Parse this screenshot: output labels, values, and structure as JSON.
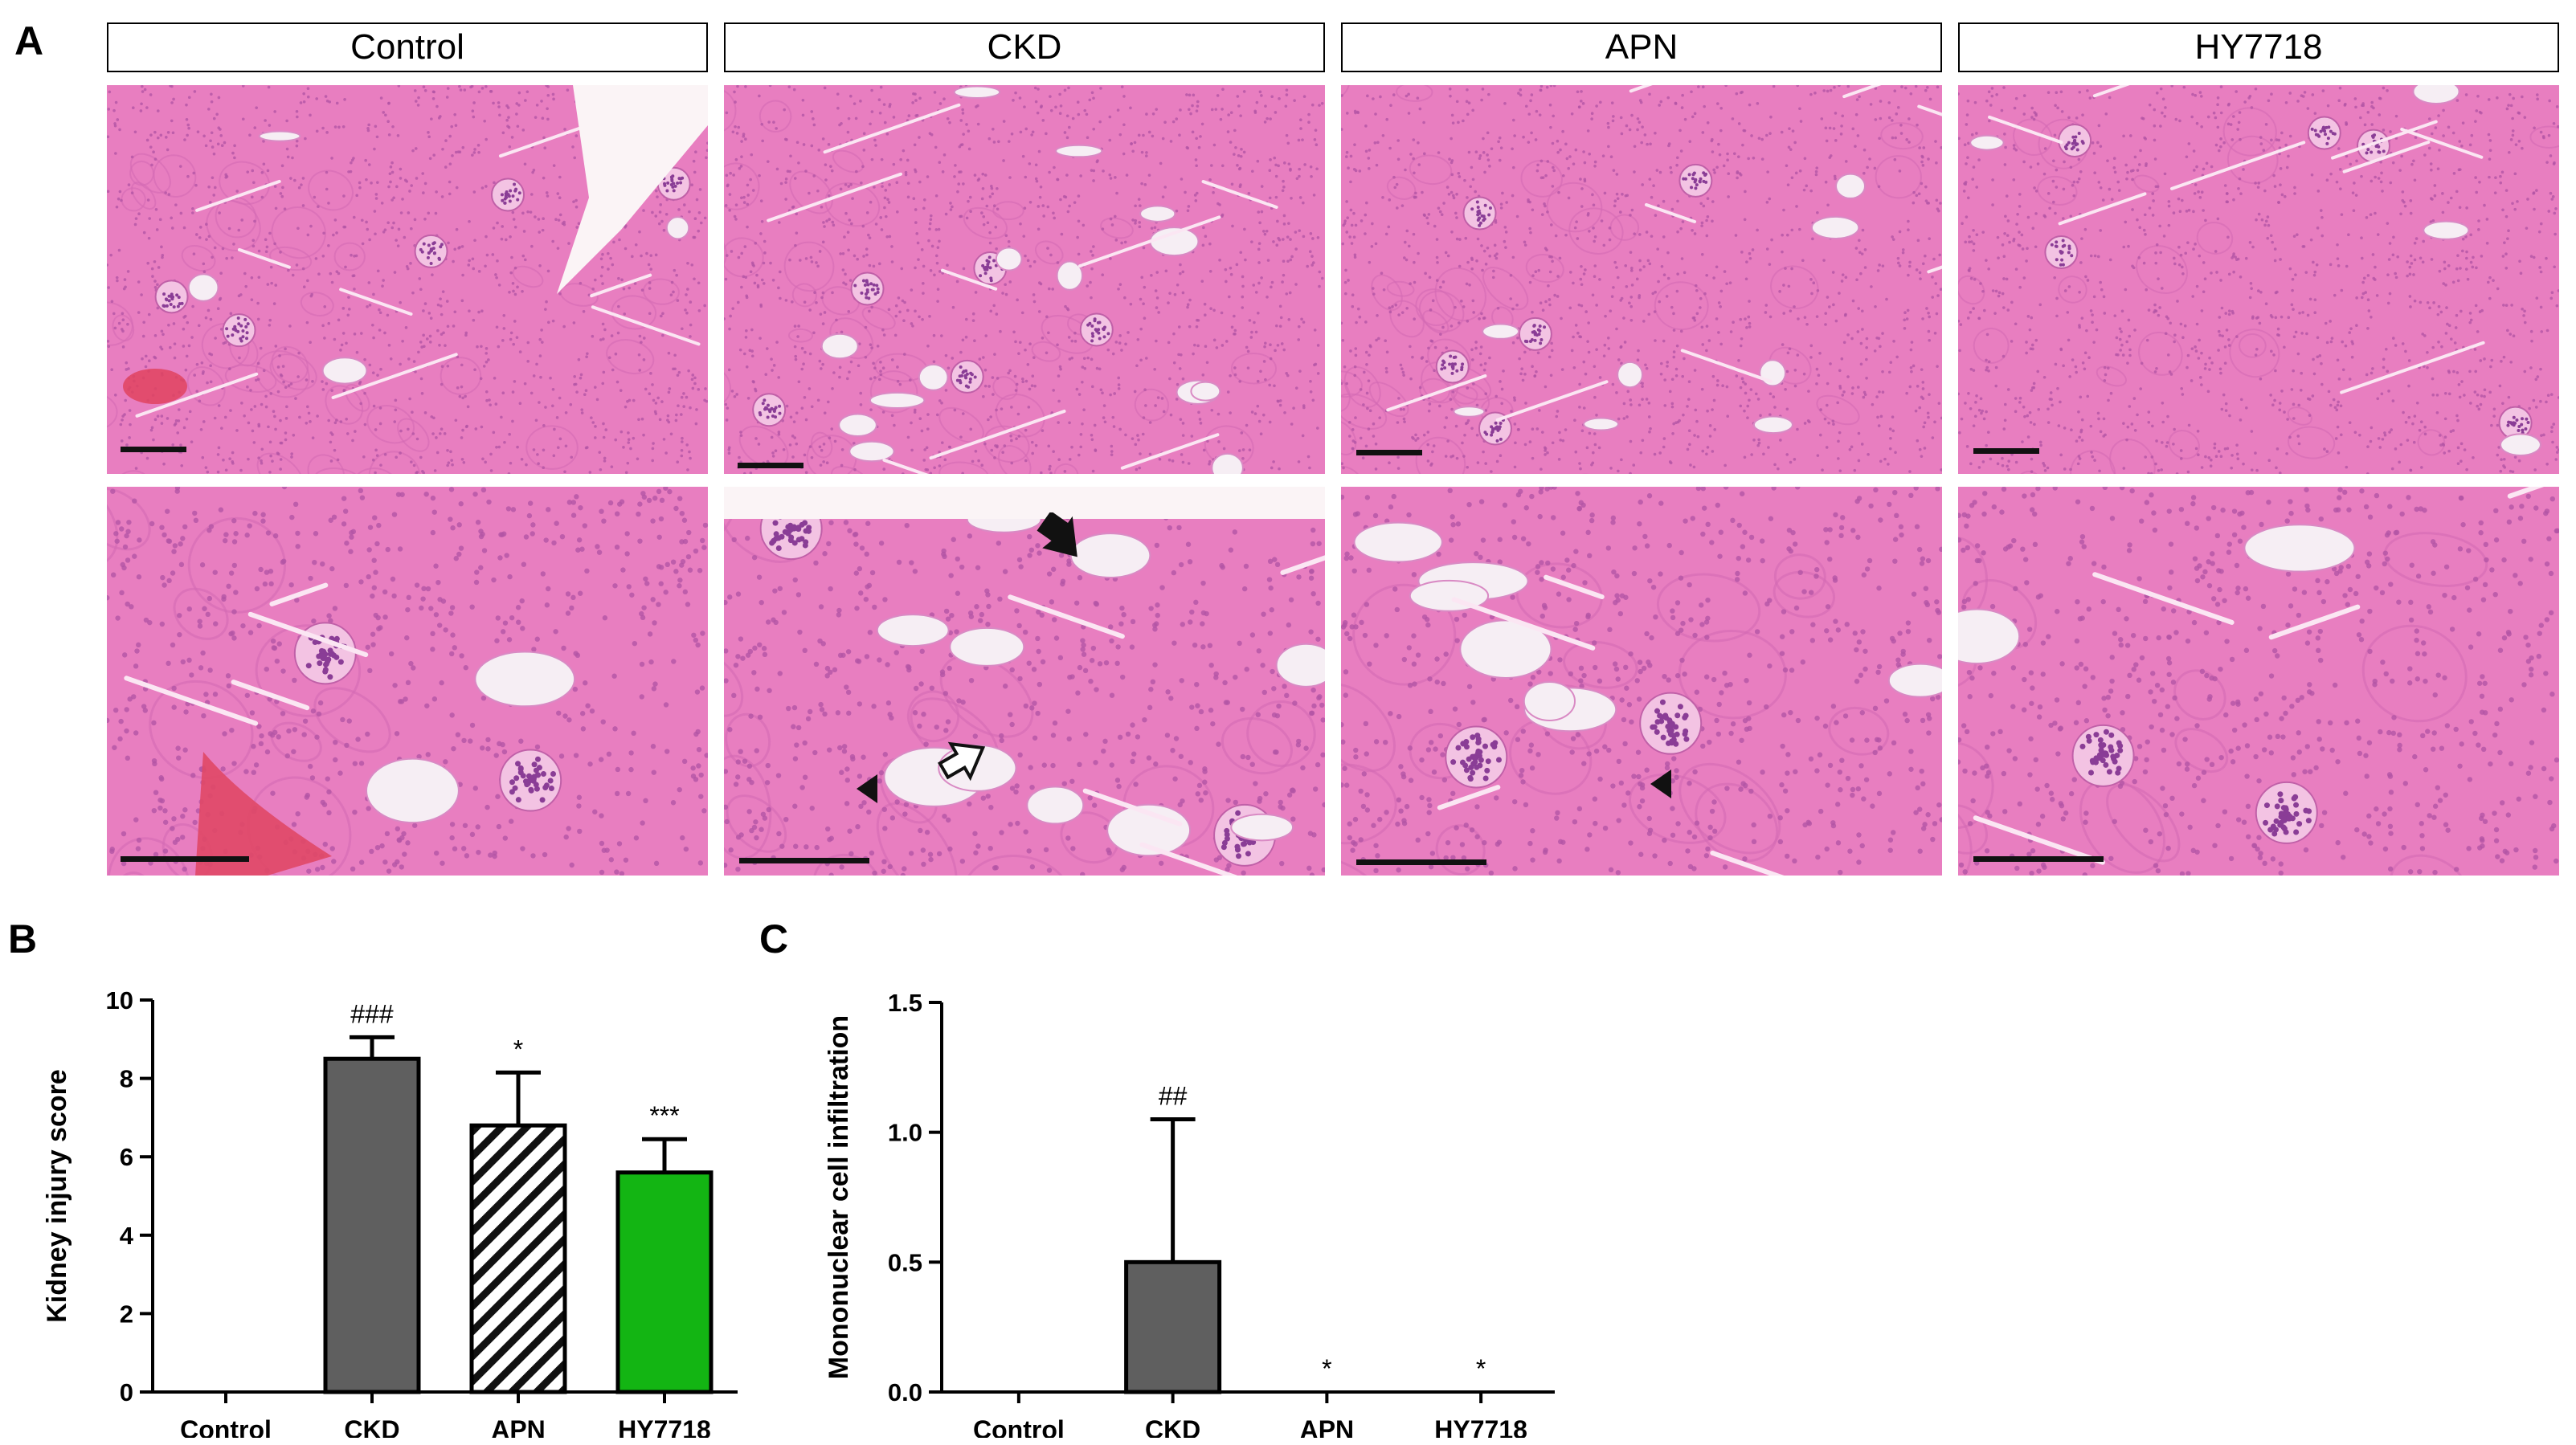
{
  "panels": {
    "A": "A",
    "B": "B",
    "C": "C"
  },
  "groups": [
    "Control",
    "CKD",
    "APN",
    "HY7718"
  ],
  "colors": {
    "tissue_base": "#e87ec0",
    "tissue_dark": "#b355a5",
    "lumen": "#f6eef4",
    "bar_gray": "#5f5f5f",
    "bar_green": "#13b513"
  },
  "chart_data": [
    {
      "type": "bar",
      "panel": "B",
      "categories": [
        "Control",
        "CKD",
        "APN",
        "HY7718"
      ],
      "values": [
        0,
        8.5,
        6.8,
        5.6
      ],
      "errors": [
        0,
        0.55,
        1.35,
        0.85
      ],
      "annotations": [
        "",
        "###",
        "*",
        "***"
      ],
      "bar_styles": [
        "none",
        "gray",
        "hatched",
        "green"
      ],
      "ylabel": "Kidney injury score",
      "ylim": [
        0,
        10
      ],
      "yticks": [
        0,
        2,
        4,
        6,
        8,
        10
      ]
    },
    {
      "type": "bar",
      "panel": "C",
      "categories": [
        "Control",
        "CKD",
        "APN",
        "HY7718"
      ],
      "values": [
        0,
        0.5,
        0,
        0
      ],
      "errors": [
        0,
        0.55,
        0,
        0
      ],
      "annotations": [
        "",
        "##",
        "*",
        "*"
      ],
      "bar_styles": [
        "none",
        "gray",
        "none",
        "none"
      ],
      "ylabel": "Mononuclear cell infiltration",
      "ylim": [
        0,
        1.5
      ],
      "yticks": [
        "0.0",
        "0.5",
        "1.0",
        "1.5"
      ]
    }
  ]
}
